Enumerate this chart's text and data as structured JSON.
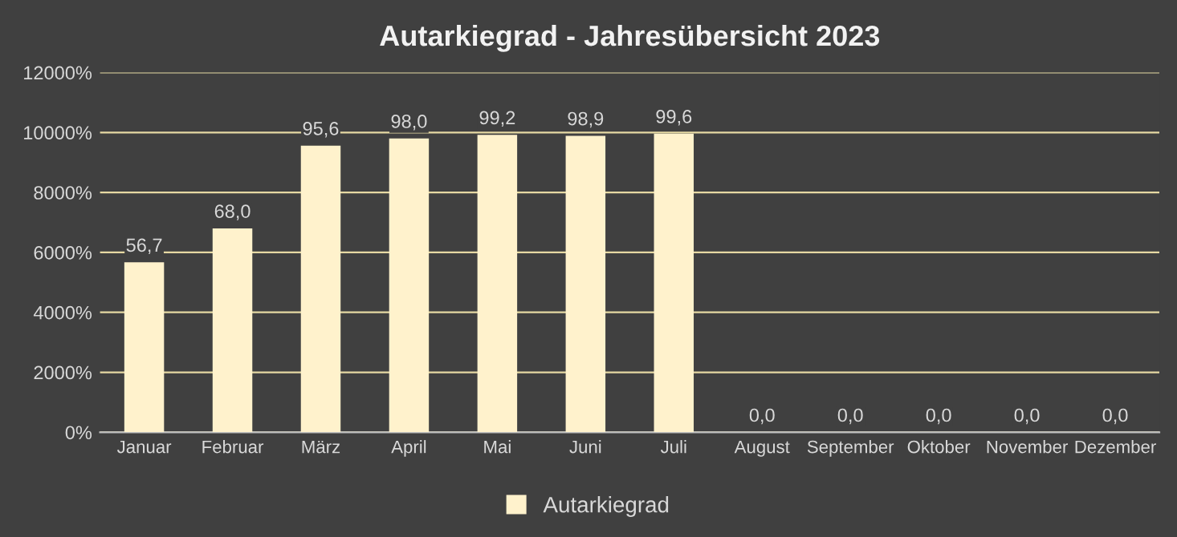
{
  "chart_data": {
    "type": "bar",
    "title": "Autarkiegrad - Jahresübersicht 2023",
    "categories": [
      "Januar",
      "Februar",
      "März",
      "April",
      "Mai",
      "Juni",
      "Juli",
      "August",
      "September",
      "Oktober",
      "November",
      "Dezember"
    ],
    "series": [
      {
        "name": "Autarkiegrad",
        "color": "#fff2cc",
        "values": [
          56.7,
          68.0,
          95.6,
          98.0,
          99.2,
          98.9,
          99.6,
          0,
          0,
          0,
          0,
          0
        ],
        "value_labels": [
          "56,7",
          "68,0",
          "95,6",
          "98,0",
          "99,2",
          "98,9",
          "99,6",
          "0,0",
          "0,0",
          "0,0",
          "0,0",
          "0,0"
        ]
      }
    ],
    "ylim": [
      0,
      120
    ],
    "yticks": [
      {
        "value": 0,
        "label": "0%"
      },
      {
        "value": 20,
        "label": "2000%"
      },
      {
        "value": 40,
        "label": "4000%"
      },
      {
        "value": 60,
        "label": "6000%"
      },
      {
        "value": 80,
        "label": "8000%"
      },
      {
        "value": 100,
        "label": "10000%"
      },
      {
        "value": 120,
        "label": "12000%"
      }
    ],
    "grid": "y",
    "legend": "bottom"
  }
}
